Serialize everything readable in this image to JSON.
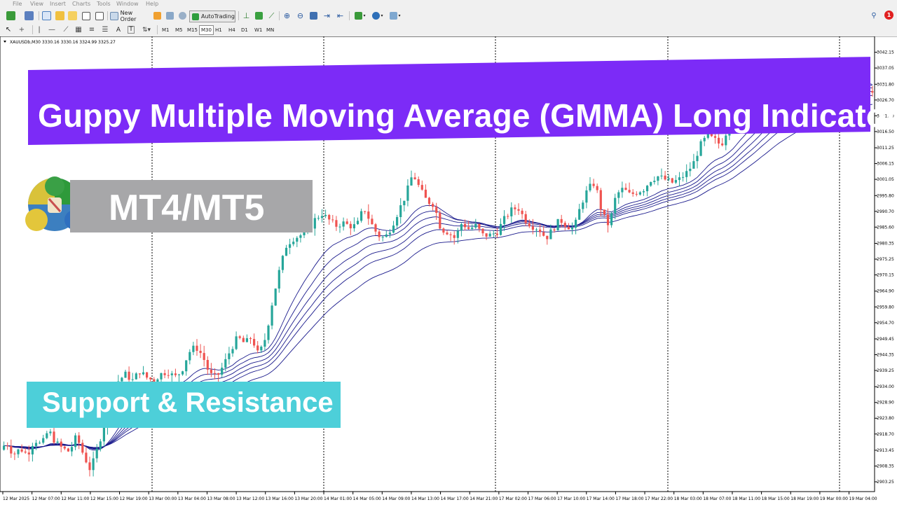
{
  "menu": [
    "File",
    "View",
    "Insert",
    "Charts",
    "Tools",
    "Window",
    "Help"
  ],
  "toolbar": {
    "new_order": "New Order",
    "auto_trading": "AutoTrading",
    "periods": [
      "M1",
      "M5",
      "M15",
      "M30",
      "H1",
      "H4",
      "D1",
      "W1",
      "MN"
    ],
    "active_period": "M30",
    "notification_count": "1"
  },
  "chart_info": "XAUUSDb,M30  3330.16 3330.16 3324.99 3325.27",
  "overlays": {
    "title": "Guppy Multiple Moving Average (GMMA) Long Indicator",
    "platform": "MT4/MT5",
    "subtitle": "Support & Resistance"
  },
  "colors": {
    "title_bg": "#7c2bf7",
    "platform_bg": "#a7a7a9",
    "subtitle_bg": "#4dcfd9",
    "bull_candle": "#26a69a",
    "bear_candle": "#ef5350",
    "ma_lines": "#1a1a8c"
  },
  "chart_data": {
    "type": "candlestick",
    "symbol": "XAUUSDb",
    "timeframe": "M30",
    "ohlc_header": {
      "open": 3330.16,
      "high": 3330.16,
      "low": 3324.99,
      "close": 3325.27
    },
    "ylim": [
      2903.25,
      3045.0
    ],
    "y_ticks": [
      "3042.15",
      "3037.05",
      "3031.80",
      "3026.70",
      "3021.60",
      "3016.50",
      "3011.25",
      "3006.15",
      "3001.05",
      "2995.80",
      "2990.70",
      "2985.60",
      "2980.35",
      "2975.25",
      "2970.15",
      "2964.90",
      "2959.80",
      "2954.70",
      "2949.45",
      "2944.35",
      "2939.25",
      "2934.00",
      "2928.90",
      "2923.80",
      "2918.70",
      "2913.45",
      "2908.35",
      "2903.25"
    ],
    "x_ticks": [
      "12 Mar 2025",
      "12 Mar 07:00",
      "12 Mar 11:00",
      "12 Mar 15:00",
      "12 Mar 19:00",
      "13 Mar 00:00",
      "13 Mar 04:00",
      "13 Mar 08:00",
      "13 Mar 12:00",
      "13 Mar 16:00",
      "13 Mar 20:00",
      "14 Mar 01:00",
      "14 Mar 05:00",
      "14 Mar 09:00",
      "14 Mar 13:00",
      "14 Mar 17:00",
      "14 Mar 21:00",
      "17 Mar 02:00",
      "17 Mar 06:00",
      "17 Mar 10:00",
      "17 Mar 14:00",
      "17 Mar 18:00",
      "17 Mar 22:00",
      "18 Mar 03:00",
      "18 Mar 07:00",
      "18 Mar 11:00",
      "18 Mar 15:00",
      "18 Mar 19:00",
      "19 Mar 00:00",
      "19 Mar 04:00"
    ],
    "price_path": [
      [
        0,
        2913
      ],
      [
        10,
        2916
      ],
      [
        20,
        2912
      ],
      [
        30,
        2914
      ],
      [
        40,
        2912
      ],
      [
        50,
        2917
      ],
      [
        60,
        2915
      ],
      [
        70,
        2920
      ],
      [
        80,
        2916
      ],
      [
        90,
        2914
      ],
      [
        100,
        2913
      ],
      [
        110,
        2918
      ],
      [
        120,
        2912
      ],
      [
        130,
        2907
      ],
      [
        140,
        2914
      ],
      [
        150,
        2922
      ],
      [
        160,
        2930
      ],
      [
        170,
        2936
      ],
      [
        180,
        2938
      ],
      [
        190,
        2936
      ],
      [
        200,
        2939
      ],
      [
        210,
        2937
      ],
      [
        220,
        2936
      ],
      [
        230,
        2938
      ],
      [
        240,
        2939
      ],
      [
        250,
        2937
      ],
      [
        260,
        2939
      ],
      [
        270,
        2945
      ],
      [
        280,
        2947
      ],
      [
        290,
        2944
      ],
      [
        300,
        2938
      ],
      [
        310,
        2937
      ],
      [
        320,
        2941
      ],
      [
        330,
        2946
      ],
      [
        340,
        2950
      ],
      [
        350,
        2948
      ],
      [
        360,
        2950
      ],
      [
        370,
        2944
      ],
      [
        380,
        2950
      ],
      [
        390,
        2962
      ],
      [
        400,
        2972
      ],
      [
        410,
        2980
      ],
      [
        420,
        2982
      ],
      [
        430,
        2983
      ],
      [
        440,
        2984
      ],
      [
        450,
        2988
      ],
      [
        460,
        2990
      ],
      [
        470,
        2988
      ],
      [
        480,
        2986
      ],
      [
        490,
        2987
      ],
      [
        500,
        2986
      ],
      [
        510,
        2986
      ],
      [
        520,
        2992
      ],
      [
        530,
        2987
      ],
      [
        540,
        2983
      ],
      [
        550,
        2982
      ],
      [
        560,
        2986
      ],
      [
        570,
        2991
      ],
      [
        580,
        2996
      ],
      [
        590,
        3003
      ],
      [
        600,
        2998
      ],
      [
        610,
        2994
      ],
      [
        620,
        2993
      ],
      [
        630,
        2985
      ],
      [
        640,
        2984
      ],
      [
        650,
        2982
      ],
      [
        660,
        2987
      ],
      [
        670,
        2985
      ],
      [
        680,
        2986
      ],
      [
        690,
        2983
      ],
      [
        700,
        2983
      ],
      [
        710,
        2984
      ],
      [
        720,
        2988
      ],
      [
        730,
        2991
      ],
      [
        740,
        2992
      ],
      [
        750,
        2988
      ],
      [
        760,
        2986
      ],
      [
        770,
        2985
      ],
      [
        780,
        2982
      ],
      [
        790,
        2985
      ],
      [
        800,
        2988
      ],
      [
        810,
        2986
      ],
      [
        820,
        2985
      ],
      [
        830,
        2993
      ],
      [
        840,
        2998
      ],
      [
        850,
        3000
      ],
      [
        860,
        2990
      ],
      [
        870,
        2986
      ],
      [
        880,
        2996
      ],
      [
        890,
        2998
      ],
      [
        900,
        2996
      ],
      [
        910,
        2997
      ],
      [
        920,
        2998
      ],
      [
        930,
        3001
      ],
      [
        940,
        3002
      ],
      [
        950,
        3001
      ],
      [
        960,
        3000
      ],
      [
        970,
        3001
      ],
      [
        980,
        3003
      ],
      [
        990,
        3006
      ],
      [
        1000,
        3012
      ],
      [
        1010,
        3015
      ],
      [
        1020,
        3014
      ],
      [
        1030,
        3012
      ],
      [
        1040,
        3018
      ],
      [
        1050,
        3022
      ],
      [
        1060,
        3026
      ],
      [
        1070,
        3028
      ],
      [
        1080,
        3030
      ],
      [
        1090,
        3033
      ],
      [
        1100,
        3035
      ],
      [
        1110,
        3036
      ],
      [
        1120,
        3034
      ],
      [
        1130,
        3033
      ],
      [
        1140,
        3035
      ],
      [
        1150,
        3035
      ],
      [
        1160,
        3034
      ],
      [
        1170,
        3036
      ],
      [
        1180,
        3036
      ],
      [
        1190,
        3034
      ],
      [
        1200,
        3033
      ],
      [
        1210,
        3034
      ],
      [
        1220,
        3032
      ],
      [
        1230,
        3030
      ],
      [
        1240,
        3029
      ]
    ],
    "ma_count": 6,
    "grid": "vertical dotted separators"
  }
}
